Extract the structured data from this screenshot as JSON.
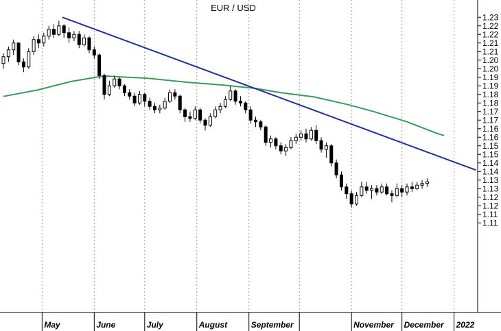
{
  "chart_data": {
    "type": "candlestick",
    "title": "EUR / USD",
    "xlabel": "",
    "ylabel": "",
    "ylim": [
      1.1065,
      1.2345
    ],
    "y_ticks": [
      "1.23",
      "1.22",
      "1.22",
      "1.21",
      "1.21",
      "1.20",
      "1.20",
      "1.19",
      "1.19",
      "1.18",
      "1.18",
      "1.17",
      "1.17",
      "1.16",
      "1.16",
      "1.15",
      "1.15",
      "1.14",
      "1.14",
      "1.13",
      "1.13",
      "1.12",
      "1.12",
      "1.11",
      "1.11"
    ],
    "y_tick_values": [
      1.23,
      1.225,
      1.22,
      1.215,
      1.21,
      1.205,
      1.2,
      1.195,
      1.19,
      1.185,
      1.18,
      1.175,
      1.17,
      1.165,
      1.16,
      1.155,
      1.15,
      1.145,
      1.14,
      1.135,
      1.13,
      1.125,
      1.12,
      1.115,
      1.11
    ],
    "months": [
      {
        "label": "May",
        "day": 23
      },
      {
        "label": "June",
        "day": 54
      },
      {
        "label": "July",
        "day": 84
      },
      {
        "label": "August",
        "day": 115
      },
      {
        "label": "September",
        "day": 146
      },
      {
        "label": "November",
        "day": 207
      },
      {
        "label": "December",
        "day": 237
      },
      {
        "label": "2022",
        "day": 268
      }
    ],
    "grid_days": [
      23,
      54,
      84,
      115,
      146,
      176,
      207,
      237,
      268
    ],
    "grid": "vertical dotted",
    "series": [
      {
        "type": "line",
        "color": "#3a9a5e",
        "points": [
          [
            0,
            1.1838
          ],
          [
            20,
            1.1875
          ],
          [
            40,
            1.1925
          ],
          [
            60,
            1.1958
          ],
          [
            70,
            1.1952
          ],
          [
            85,
            1.1945
          ],
          [
            110,
            1.192
          ],
          [
            130,
            1.1905
          ],
          [
            150,
            1.1885
          ],
          [
            165,
            1.186
          ],
          [
            185,
            1.1835
          ],
          [
            205,
            1.179
          ],
          [
            220,
            1.175
          ],
          [
            240,
            1.169
          ],
          [
            258,
            1.1622
          ],
          [
            262,
            1.161
          ]
        ]
      },
      {
        "type": "line",
        "color": "#1f2f9e",
        "points": [
          [
            35,
            1.23
          ],
          [
            281,
            1.1408
          ]
        ]
      },
      {
        "type": "candlestick",
        "color": "#000000",
        "ohlc": [
          [
            0,
            1.203,
            1.209,
            1.2,
            1.207
          ],
          [
            3,
            1.207,
            1.213,
            1.204,
            1.211
          ],
          [
            6,
            1.211,
            1.217,
            1.208,
            1.215
          ],
          [
            9,
            1.215,
            1.2155,
            1.202,
            1.204
          ],
          [
            12,
            1.204,
            1.206,
            1.198,
            1.201
          ],
          [
            15,
            1.201,
            1.212,
            1.2,
            1.21
          ],
          [
            18,
            1.21,
            1.219,
            1.208,
            1.217
          ],
          [
            21,
            1.217,
            1.22,
            1.212,
            1.215
          ],
          [
            24,
            1.215,
            1.221,
            1.213,
            1.219
          ],
          [
            27,
            1.219,
            1.225,
            1.217,
            1.223
          ],
          [
            30,
            1.223,
            1.226,
            1.218,
            1.22
          ],
          [
            33,
            1.22,
            1.228,
            1.219,
            1.225
          ],
          [
            36,
            1.225,
            1.226,
            1.218,
            1.221
          ],
          [
            39,
            1.221,
            1.224,
            1.215,
            1.218
          ],
          [
            42,
            1.218,
            1.222,
            1.216,
            1.22
          ],
          [
            45,
            1.22,
            1.222,
            1.212,
            1.214
          ],
          [
            48,
            1.214,
            1.22,
            1.213,
            1.218
          ],
          [
            51,
            1.218,
            1.219,
            1.209,
            1.211
          ],
          [
            54,
            1.211,
            1.213,
            1.206,
            1.208
          ],
          [
            57,
            1.208,
            1.209,
            1.194,
            1.196
          ],
          [
            60,
            1.196,
            1.197,
            1.182,
            1.185
          ],
          [
            63,
            1.185,
            1.193,
            1.184,
            1.19
          ],
          [
            66,
            1.19,
            1.196,
            1.189,
            1.194
          ],
          [
            69,
            1.194,
            1.195,
            1.188,
            1.19
          ],
          [
            72,
            1.19,
            1.191,
            1.184,
            1.186
          ],
          [
            75,
            1.186,
            1.188,
            1.182,
            1.184
          ],
          [
            78,
            1.184,
            1.186,
            1.178,
            1.18
          ],
          [
            81,
            1.18,
            1.187,
            1.179,
            1.185
          ],
          [
            84,
            1.185,
            1.186,
            1.178,
            1.181
          ],
          [
            87,
            1.181,
            1.183,
            1.176,
            1.178
          ],
          [
            90,
            1.178,
            1.18,
            1.174,
            1.176
          ],
          [
            93,
            1.176,
            1.179,
            1.174,
            1.177
          ],
          [
            96,
            1.177,
            1.183,
            1.176,
            1.181
          ],
          [
            99,
            1.181,
            1.188,
            1.18,
            1.186
          ],
          [
            102,
            1.186,
            1.188,
            1.182,
            1.184
          ],
          [
            105,
            1.184,
            1.185,
            1.174,
            1.176
          ],
          [
            108,
            1.176,
            1.177,
            1.169,
            1.172
          ],
          [
            111,
            1.172,
            1.175,
            1.169,
            1.171
          ],
          [
            114,
            1.171,
            1.178,
            1.17,
            1.176
          ],
          [
            117,
            1.176,
            1.177,
            1.168,
            1.17
          ],
          [
            120,
            1.17,
            1.171,
            1.164,
            1.167
          ],
          [
            123,
            1.167,
            1.174,
            1.166,
            1.172
          ],
          [
            126,
            1.172,
            1.178,
            1.171,
            1.176
          ],
          [
            129,
            1.176,
            1.18,
            1.174,
            1.178
          ],
          [
            132,
            1.178,
            1.184,
            1.177,
            1.182
          ],
          [
            135,
            1.182,
            1.19,
            1.181,
            1.187
          ],
          [
            138,
            1.187,
            1.188,
            1.179,
            1.181
          ],
          [
            141,
            1.181,
            1.184,
            1.178,
            1.18
          ],
          [
            144,
            1.18,
            1.181,
            1.174,
            1.176
          ],
          [
            147,
            1.176,
            1.178,
            1.168,
            1.17
          ],
          [
            150,
            1.17,
            1.172,
            1.166,
            1.169
          ],
          [
            153,
            1.169,
            1.17,
            1.164,
            1.166
          ],
          [
            156,
            1.166,
            1.167,
            1.155,
            1.157
          ],
          [
            159,
            1.157,
            1.161,
            1.154,
            1.159
          ],
          [
            162,
            1.159,
            1.16,
            1.153,
            1.155
          ],
          [
            165,
            1.155,
            1.157,
            1.15,
            1.152
          ],
          [
            168,
            1.152,
            1.156,
            1.149,
            1.154
          ],
          [
            171,
            1.154,
            1.16,
            1.153,
            1.158
          ],
          [
            174,
            1.158,
            1.162,
            1.156,
            1.16
          ],
          [
            177,
            1.16,
            1.164,
            1.158,
            1.162
          ],
          [
            180,
            1.162,
            1.165,
            1.157,
            1.159
          ],
          [
            183,
            1.159,
            1.166,
            1.158,
            1.164
          ],
          [
            186,
            1.164,
            1.167,
            1.156,
            1.158
          ],
          [
            189,
            1.158,
            1.16,
            1.151,
            1.153
          ],
          [
            192,
            1.153,
            1.157,
            1.148,
            1.155
          ],
          [
            195,
            1.155,
            1.156,
            1.143,
            1.145
          ],
          [
            198,
            1.145,
            1.147,
            1.136,
            1.138
          ],
          [
            201,
            1.138,
            1.14,
            1.129,
            1.131
          ],
          [
            204,
            1.131,
            1.133,
            1.124,
            1.127
          ],
          [
            207,
            1.127,
            1.129,
            1.119,
            1.121
          ],
          [
            210,
            1.121,
            1.128,
            1.12,
            1.126
          ],
          [
            213,
            1.126,
            1.134,
            1.125,
            1.131
          ],
          [
            216,
            1.131,
            1.134,
            1.127,
            1.129
          ],
          [
            219,
            1.129,
            1.132,
            1.124,
            1.13
          ],
          [
            222,
            1.13,
            1.132,
            1.126,
            1.128
          ],
          [
            225,
            1.128,
            1.133,
            1.127,
            1.131
          ],
          [
            228,
            1.131,
            1.133,
            1.126,
            1.127
          ],
          [
            231,
            1.127,
            1.129,
            1.122,
            1.126
          ],
          [
            234,
            1.126,
            1.133,
            1.125,
            1.13
          ],
          [
            237,
            1.13,
            1.132,
            1.125,
            1.128
          ],
          [
            240,
            1.128,
            1.133,
            1.126,
            1.131
          ],
          [
            243,
            1.131,
            1.134,
            1.128,
            1.13
          ],
          [
            246,
            1.13,
            1.134,
            1.129,
            1.132
          ],
          [
            249,
            1.132,
            1.135,
            1.13,
            1.133
          ],
          [
            252,
            1.133,
            1.136,
            1.131,
            1.134
          ]
        ]
      }
    ]
  }
}
